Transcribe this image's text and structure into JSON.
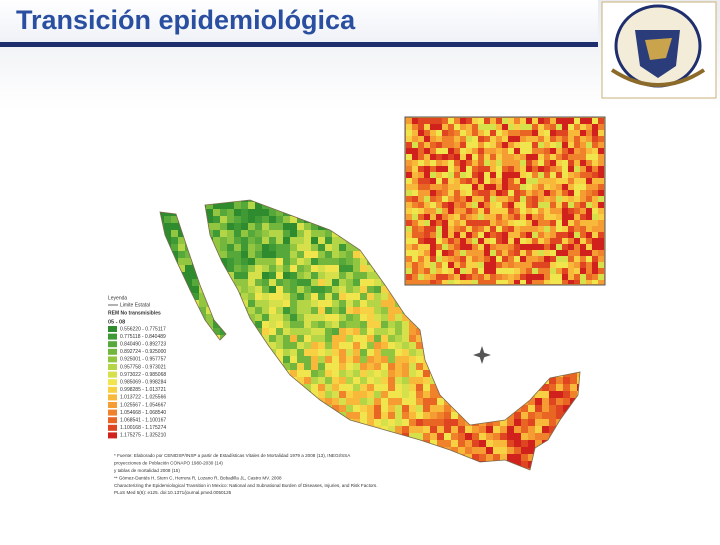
{
  "header": {
    "title": "Transición epidemiológica"
  },
  "legend": {
    "heading": "Leyenda",
    "boundary": "Limite Estatal",
    "layer": "REM No transmisibles",
    "period": "05 - 08",
    "items": [
      {
        "label": "0.556220 - 0.775117",
        "color": "#2e8b2e"
      },
      {
        "label": "0.775118 - 0.840489",
        "color": "#3f9a35"
      },
      {
        "label": "0.840490 - 0.892723",
        "color": "#57a83a"
      },
      {
        "label": "0.892724 - 0.925000",
        "color": "#73b63e"
      },
      {
        "label": "0.925001 - 0.957757",
        "color": "#92c641"
      },
      {
        "label": "0.957758 - 0.973021",
        "color": "#b4d545"
      },
      {
        "label": "0.973022 - 0.985068",
        "color": "#d6e04a"
      },
      {
        "label": "0.985069 - 0.998284",
        "color": "#f0e54c"
      },
      {
        "label": "0.998285 - 1.013721",
        "color": "#f7d043"
      },
      {
        "label": "1.013722 - 1.025566",
        "color": "#f8b83a"
      },
      {
        "label": "1.025567 - 1.054667",
        "color": "#f59d32"
      },
      {
        "label": "1.054668 - 1.068540",
        "color": "#f0822b"
      },
      {
        "label": "1.068541 - 1.100167",
        "color": "#e86524"
      },
      {
        "label": "1.100168 - 1.175274",
        "color": "#de4520"
      },
      {
        "label": "1.175275 - 1.325210",
        "color": "#d1211c"
      }
    ]
  },
  "footnotes": [
    "* Fuente: Elaborado por CENIDSP/INSP a partir de Estadísticas Vitales de Mortalidad 1979 a 2008 (13), INEGI/SSA",
    "proyecciones de Población CONAPO 1980-2030 (14)",
    "y tablas de mortalidad 2008 (15)",
    "** Gómez-Dantés H, Stern C, Herrera R, Lozano R, Bobadilla JL, Castro MV. 2008",
    "Characterizing the Epidemiological Transition in Mexico: National and Subnational Burden of Diseases, Injuries, and Risk Factors.",
    "PLoS Med 5(6): e125. doi:10.1371/journal.pmed.0050125"
  ]
}
